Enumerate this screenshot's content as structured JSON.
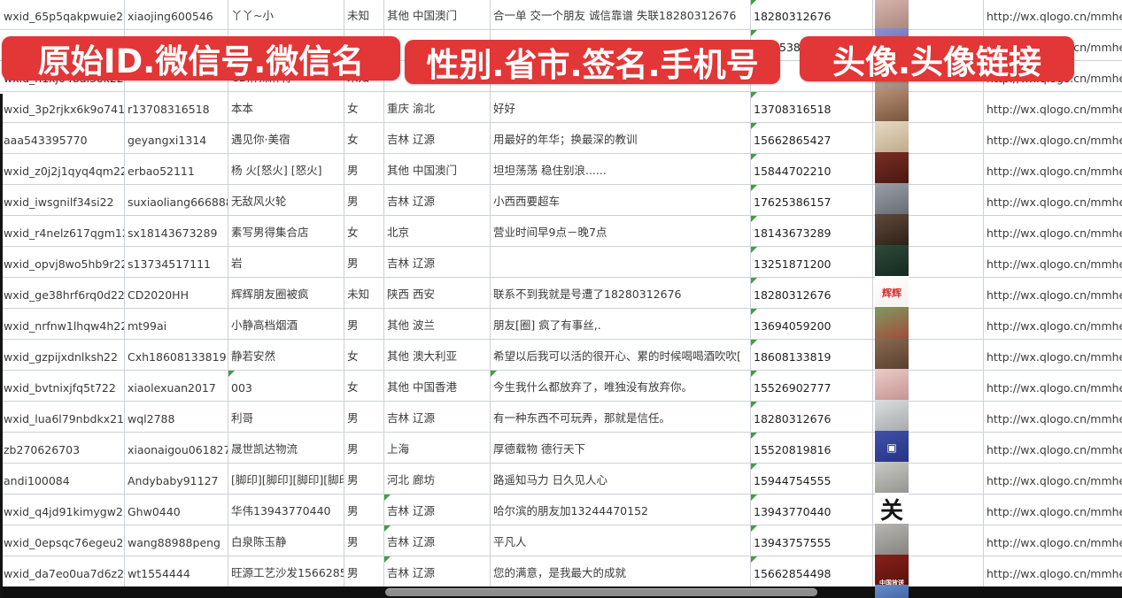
{
  "banners": [
    {
      "text": "原始ID.微信号.微信名"
    },
    {
      "text": "性别.省市.签名.手机号"
    },
    {
      "text": "头像.头像链接"
    }
  ],
  "colors": {
    "banner_red": "#e23637",
    "gridline": "#ccd1d7",
    "triangle_green": "#3f9e46",
    "cell_text": "#3a3a3a",
    "bottom_bar": "#101010",
    "scroll_thumb": "#8e8e8e"
  },
  "table": {
    "url_text": "http://wx.qlogo.cn/mmhead",
    "rows": [
      {
        "id": "wxid_65p5qakpwuie22",
        "account": "xiaojing600546",
        "name": "丫丫~小",
        "gender": "未知",
        "region": "其他 中国澳门",
        "signature": "合一单 交一个朋友 诚信靠谱 失联18280312676",
        "phone": "18280312676",
        "url": true,
        "avatar": {
          "c1": "#d9b8b2",
          "c2": "#a8867c",
          "label": ""
        }
      },
      {
        "hidden": true,
        "id": "",
        "account": "",
        "name": "",
        "gender": "",
        "region": "",
        "signature": "",
        "phone": "5386",
        "phone_pad": 33,
        "url": true,
        "avatar": {
          "c1": "#8a92cf",
          "c2": "#5a64b0",
          "label": ""
        }
      },
      {
        "id": "wxid_h1xj048al3ok22",
        "account": "",
        "name": "CD麻辣麻将",
        "gender": "未知",
        "region": "",
        "signature": "",
        "phone": "",
        "url": true,
        "avatar": {
          "c1": "#c9b6a8",
          "c2": "#9a8273",
          "label": ""
        }
      },
      {
        "id": "wxid_3p2rjkx6k9o741",
        "account": "r13708316518",
        "name": "本本",
        "gender": "女",
        "region": "重庆 渝北",
        "signature": "好好",
        "phone": "13708316518",
        "url": true,
        "avatar": {
          "c1": "#b98f74",
          "c2": "#74523c",
          "label": ""
        }
      },
      {
        "id": "aaa543395770",
        "account": "geyangxi1314",
        "name": "遇见你·美宿",
        "gender": "女",
        "region": "吉林 辽源",
        "signature": "用最好的年华；换最深的教训",
        "phone": "15662865427",
        "url": true,
        "avatar": {
          "c1": "#e6dac6",
          "c2": "#bfa988",
          "label": ""
        }
      },
      {
        "id": "wxid_z0j2j1qyq4qm22",
        "account": "erbao52111",
        "name": "杨 火[怒火] [怒火]",
        "gender": "男",
        "region": "其他 中国澳门",
        "signature": "坦坦荡荡 稳住别浪......",
        "phone": "15844702210",
        "url": true,
        "avatar": {
          "c1": "#7a2e24",
          "c2": "#46170f",
          "label": ""
        }
      },
      {
        "id": "wxid_iwsgnilf34si22",
        "account": "suxiaoliang666888",
        "name": "无敌风火轮",
        "gender": "男",
        "region": "吉林 辽源",
        "signature": "小西西要超车",
        "phone": "17625386157",
        "url": true,
        "avatar": {
          "c1": "#9aa0a8",
          "c2": "#666b72",
          "label": ""
        }
      },
      {
        "id": "wxid_r4nelz617qgm12",
        "account": "sx18143673289",
        "name": "素写男得集合店",
        "gender": "女",
        "region": "北京",
        "signature": "营业时间早9点－晚7点",
        "phone": "18143673289",
        "url": true,
        "avatar": {
          "c1": "#5f4a3a",
          "c2": "#2c1f16",
          "label": ""
        }
      },
      {
        "id": "wxid_opvj8wo5hb9r22",
        "account": "s13734517111",
        "name": "岩",
        "gender": "男",
        "region": "吉林 辽源",
        "signature": "",
        "phone": "13251871200",
        "url": true,
        "avatar": {
          "c1": "#2e4a3a",
          "c2": "#142820",
          "label": ""
        }
      },
      {
        "id": "wxid_ge38hrf6rq0d22",
        "account": "CD2020HH",
        "name": "辉辉朋友圈被疯",
        "gender": "未知",
        "region": "陕西 西安",
        "signature": "联系不到我就是号遭了18280312676",
        "phone": "18280312676",
        "url": true,
        "avatar": {
          "c1": "#ffffff",
          "c2": "#f4f2f0",
          "label": "辉辉",
          "label_color": "#d83030",
          "label_size": 11
        }
      },
      {
        "id": "wxid_nrfnw1lhqw4h22",
        "account": "mt99ai",
        "name": "小静高档烟酒",
        "gender": "男",
        "region": "其他 波兰",
        "signature": "朋友[圈] 疯了有事丝,.",
        "phone": "13694059200",
        "url": true,
        "avatar": {
          "c1": "#7f9a5f",
          "c2": "#a24a3a",
          "label": ""
        }
      },
      {
        "id": "wxid_gzpijxdnlksh22",
        "account": "Cxh18608133819",
        "name": "静若安然",
        "gender": "女",
        "region": "其他 澳大利亚",
        "signature": "希望以后我可以活的很开心、累的时候喝喝酒吹吹[",
        "phone": "18608133819",
        "url": true,
        "avatar": {
          "c1": "#8a6a52",
          "c2": "#573e2d",
          "label": ""
        }
      },
      {
        "id": "wxid_bvtnixjfq5t722",
        "account": "xiaolexuan2017",
        "name": "003",
        "gender": "女",
        "region": "其他 中国香港",
        "signature": "今生我什么都放弃了，唯独没有放弃你。",
        "phone": "15526902777",
        "url": true,
        "avatar": {
          "c1": "#ecccca",
          "c2": "#c3928f",
          "label": ""
        }
      },
      {
        "id": "wxid_lua6l79nbdkx21",
        "account": "wql2788",
        "name": "利哥",
        "gender": "男",
        "region": "吉林 辽源",
        "signature": "有一种东西不可玩弄，那就是信任。",
        "phone": "18280312676",
        "url": true,
        "avatar": {
          "c1": "#dcdee0",
          "c2": "#a4a8ac",
          "label": ""
        }
      },
      {
        "id": "zb270626703",
        "account": "xiaonaigou061827",
        "name": "晟世凯达物流",
        "gender": "男",
        "region": "上海",
        "signature": "厚德载物 德行天下",
        "phone": "15520819816",
        "url": true,
        "avatar": {
          "c1": "#3f51a8",
          "c2": "#253184",
          "label": "▣",
          "label_color": "#ffffff",
          "label_size": 12
        }
      },
      {
        "id": "andi100084",
        "account": "Andybaby91127",
        "name": "[脚印][脚印][脚印][脚印]",
        "gender": "男",
        "region": "河北 廊坊",
        "signature": "路遥知马力 日久见人心",
        "phone": "15944754555",
        "url": true,
        "avatar": {
          "c1": "#c9c9c5",
          "c2": "#93938e",
          "label": ""
        }
      },
      {
        "id": "wxid_q4jd91kimygw21",
        "account": "Ghw0440",
        "name": "华伟13943770440",
        "gender": "男",
        "region": "吉林 辽源",
        "signature": "哈尔滨的朋友加13244470152",
        "phone": "13943770440",
        "url": true,
        "avatar": {
          "c1": "#ffffff",
          "c2": "#ffffff",
          "label": "关",
          "label_color": "#141414",
          "label_size": 26
        }
      },
      {
        "id": "wxid_0epsqc76egeu22",
        "account": "wang88988peng",
        "name": "白泉陈玉静",
        "gender": "男",
        "region": "吉林 辽源",
        "signature": "平凡人",
        "phone": "13943757555",
        "url": true,
        "avatar": {
          "c1": "#b8b6b2",
          "c2": "#84827e",
          "label": ""
        }
      },
      {
        "id": "wxid_da7eo0ua7d6z22",
        "account": "wt1554444",
        "name": "旺源工艺沙发15662854",
        "gender": "男",
        "region": "吉林 辽源",
        "signature": "您的满意，是我最大的成就",
        "phone": "15662854498",
        "url": true,
        "avatar": {
          "c1": "#8a1f1a",
          "c2": "#56110d",
          "label": "中国放送",
          "label_color": "#ffffff",
          "label_size": 7,
          "label_pos": "bottom"
        }
      }
    ],
    "partial_row_avatar": {
      "c1": "#6a8fc9",
      "c2": "#4666a8",
      "label": "人"
    },
    "extra_triangles": [
      {
        "row": 12,
        "col": "C"
      },
      {
        "row": 12,
        "col": "F"
      },
      {
        "row": 16,
        "col": "E"
      },
      {
        "row": 17,
        "col": "E"
      },
      {
        "row": 18,
        "col": "E"
      }
    ]
  }
}
